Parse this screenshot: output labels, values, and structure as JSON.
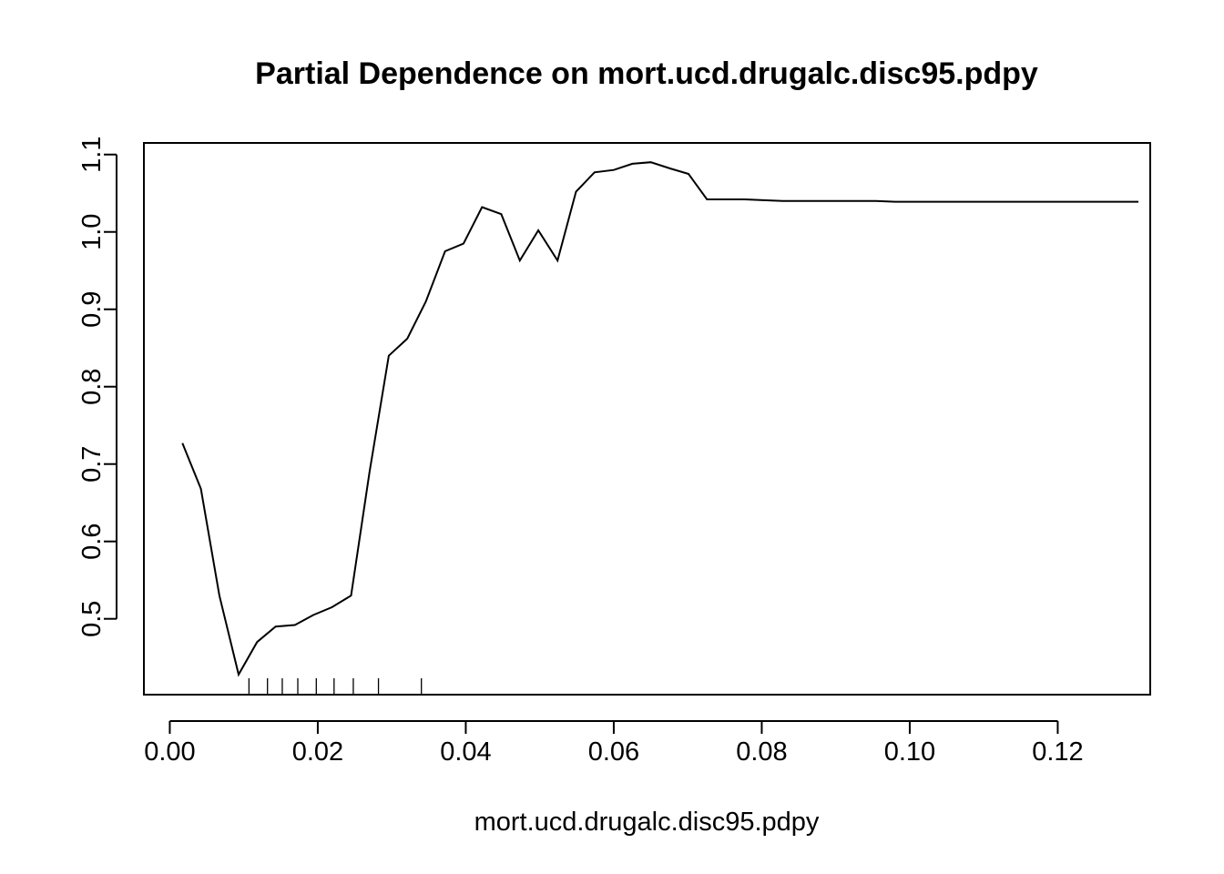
{
  "chart_data": {
    "type": "line",
    "title": "Partial Dependence on mort.ucd.drugalc.disc95.pdpy",
    "xlabel": "mort.ucd.drugalc.disc95.pdpy",
    "ylabel": "",
    "xlim": [
      -0.0035,
      0.1325
    ],
    "ylim": [
      0.402,
      1.115
    ],
    "x_ticks": [
      0.0,
      0.02,
      0.04,
      0.06,
      0.08,
      0.1,
      0.12
    ],
    "x_tick_labels": [
      "0.00",
      "0.02",
      "0.04",
      "0.06",
      "0.08",
      "0.10",
      "0.12"
    ],
    "y_ticks": [
      0.5,
      0.6,
      0.7,
      0.8,
      0.9,
      1.0,
      1.1
    ],
    "y_tick_labels": [
      "0.5",
      "0.6",
      "0.7",
      "0.8",
      "0.9",
      "1.0",
      "1.1"
    ],
    "grid": false,
    "legend": "none",
    "series": [
      {
        "x": [
          0.0017,
          0.0042,
          0.0067,
          0.0093,
          0.0118,
          0.0143,
          0.0169,
          0.0194,
          0.0219,
          0.0245,
          0.027,
          0.0296,
          0.0321,
          0.0346,
          0.0372,
          0.0397,
          0.0422,
          0.0448,
          0.0473,
          0.0498,
          0.0524,
          0.0549,
          0.0574,
          0.06,
          0.0625,
          0.065,
          0.0676,
          0.0701,
          0.0726,
          0.0752,
          0.0777,
          0.0802,
          0.0828,
          0.0853,
          0.0878,
          0.0904,
          0.0929,
          0.0954,
          0.098,
          0.1005,
          0.103,
          0.1056,
          0.1081,
          0.1106,
          0.1132,
          0.1157,
          0.1182,
          0.1208,
          0.1233,
          0.1258,
          0.1284,
          0.1309
        ],
        "y": [
          0.727,
          0.668,
          0.53,
          0.428,
          0.47,
          0.49,
          0.492,
          0.505,
          0.515,
          0.53,
          0.69,
          0.84,
          0.862,
          0.91,
          0.975,
          0.985,
          1.032,
          1.023,
          0.963,
          1.002,
          0.963,
          1.052,
          1.077,
          1.08,
          1.088,
          1.09,
          1.082,
          1.075,
          1.042,
          1.042,
          1.042,
          1.041,
          1.04,
          1.04,
          1.04,
          1.04,
          1.04,
          1.04,
          1.039,
          1.039,
          1.039,
          1.039,
          1.039,
          1.039,
          1.039,
          1.039,
          1.039,
          1.039,
          1.039,
          1.039,
          1.039,
          1.039
        ]
      }
    ],
    "rug_x": [
      0.0107,
      0.0132,
      0.0152,
      0.0173,
      0.0198,
      0.0222,
      0.0248,
      0.0282,
      0.034
    ]
  }
}
